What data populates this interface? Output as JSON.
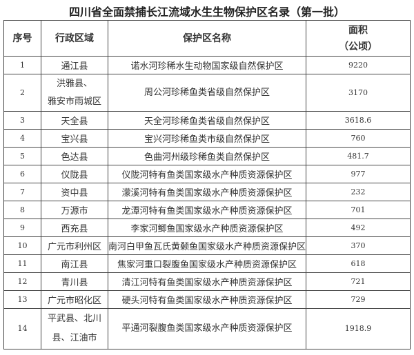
{
  "title": "四川省全面禁捕长江流域水生生物保护区名录（第一批）",
  "headers": {
    "no": "序号",
    "region": "行政区域",
    "name": "保护区名称",
    "area_line1": "面积",
    "area_line2": "（公顷）"
  },
  "rows": [
    {
      "no": "1",
      "region": [
        "通江县"
      ],
      "name": "诺水河珍稀水生动物国家级自然保护区",
      "area": "9220"
    },
    {
      "no": "2",
      "region": [
        "洪雅县、",
        "雅安市雨城区"
      ],
      "name": "周公河珍稀鱼类省级自然保护区",
      "area": "3170"
    },
    {
      "no": "3",
      "region": [
        "天全县"
      ],
      "name": "天全河珍稀鱼类省级自然保护区",
      "area": "3618.6"
    },
    {
      "no": "4",
      "region": [
        "宝兴县"
      ],
      "name": "宝兴河珍稀鱼类市级自然保护区",
      "area": "760"
    },
    {
      "no": "5",
      "region": [
        "色达县"
      ],
      "name": "色曲河州级珍稀鱼类自然保护区",
      "area": "481.7"
    },
    {
      "no": "6",
      "region": [
        "仪陇县"
      ],
      "name": "仪陇河特有鱼类国家级水产种质资源保护区",
      "area": "977"
    },
    {
      "no": "7",
      "region": [
        "资中县"
      ],
      "name": "濛溪河特有鱼类国家级水产种质资源保护区",
      "area": "232"
    },
    {
      "no": "8",
      "region": [
        "万源市"
      ],
      "name": "龙潭河特有鱼类国家级水产种质资源保护区",
      "area": "701"
    },
    {
      "no": "9",
      "region": [
        "西充县"
      ],
      "name": "李家河鲫鱼国家级水产种质资源保护区",
      "area": "492"
    },
    {
      "no": "10",
      "region": [
        "广元市利州区"
      ],
      "name": "南河白甲鱼瓦氏黄颡鱼国家级水产种质资源保护区",
      "area": "370"
    },
    {
      "no": "11",
      "region": [
        "南江县"
      ],
      "name": "焦家河重口裂腹鱼国家级水产种质资源保护区",
      "area": "618"
    },
    {
      "no": "12",
      "region": [
        "青川县"
      ],
      "name": "清江河特有鱼类国家级水产种质资源保护区",
      "area": "721"
    },
    {
      "no": "13",
      "region": [
        "广元市昭化区"
      ],
      "name": "硬头河特有鱼类国家级水产种质资源保护区",
      "area": "729"
    },
    {
      "no": "14",
      "region": [
        "平武县、北川",
        "县、江油市"
      ],
      "name": "平通河裂腹鱼类国家级水产种质资源保护区",
      "area": "1918.9"
    }
  ]
}
